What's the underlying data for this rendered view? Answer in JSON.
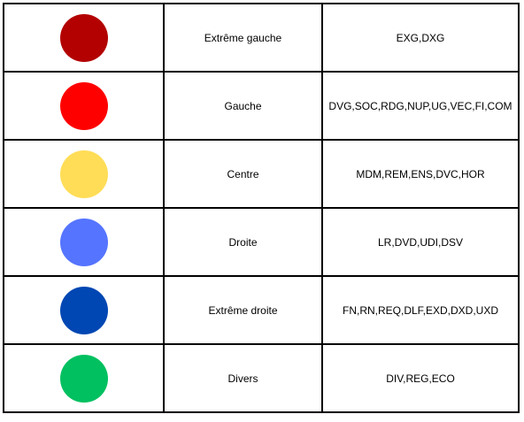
{
  "rows": [
    {
      "label": "Extrême gauche",
      "codes": "EXG,DXG",
      "color": "#b30000"
    },
    {
      "label": "Gauche",
      "codes": "DVG,SOC,RDG,NUP,UG,VEC,FI,COM",
      "color": "#ff0000"
    },
    {
      "label": "Centre",
      "codes": "MDM,REM,ENS,DVC,HOR",
      "color": "#ffdd57"
    },
    {
      "label": "Droite",
      "codes": "LR,DVD,UDI,DSV",
      "color": "#5574ff"
    },
    {
      "label": "Extrême droite",
      "codes": "FN,RN,REQ,DLF,EXD,DXD,UXD",
      "color": "#0047b3"
    },
    {
      "label": "Divers",
      "codes": "DIV,REG,ECO",
      "color": "#00c060"
    }
  ]
}
